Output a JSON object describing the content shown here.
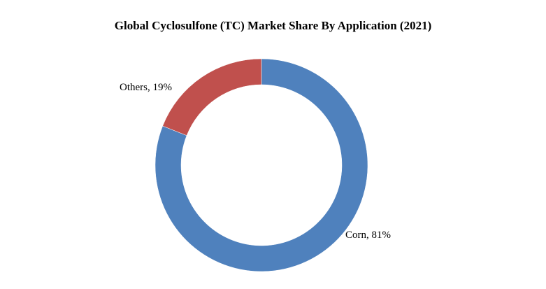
{
  "chart_data": {
    "type": "pie",
    "style": "donut",
    "title": "Global Cyclosulfone (TC) Market Share By Application (2021)",
    "slices": [
      {
        "label": "Corn",
        "value": 81,
        "display": "Corn, 81%",
        "color": "#4f81bd"
      },
      {
        "label": "Others",
        "value": 19,
        "display": "Others, 19%",
        "color": "#c0504d"
      }
    ],
    "legend": "none"
  }
}
